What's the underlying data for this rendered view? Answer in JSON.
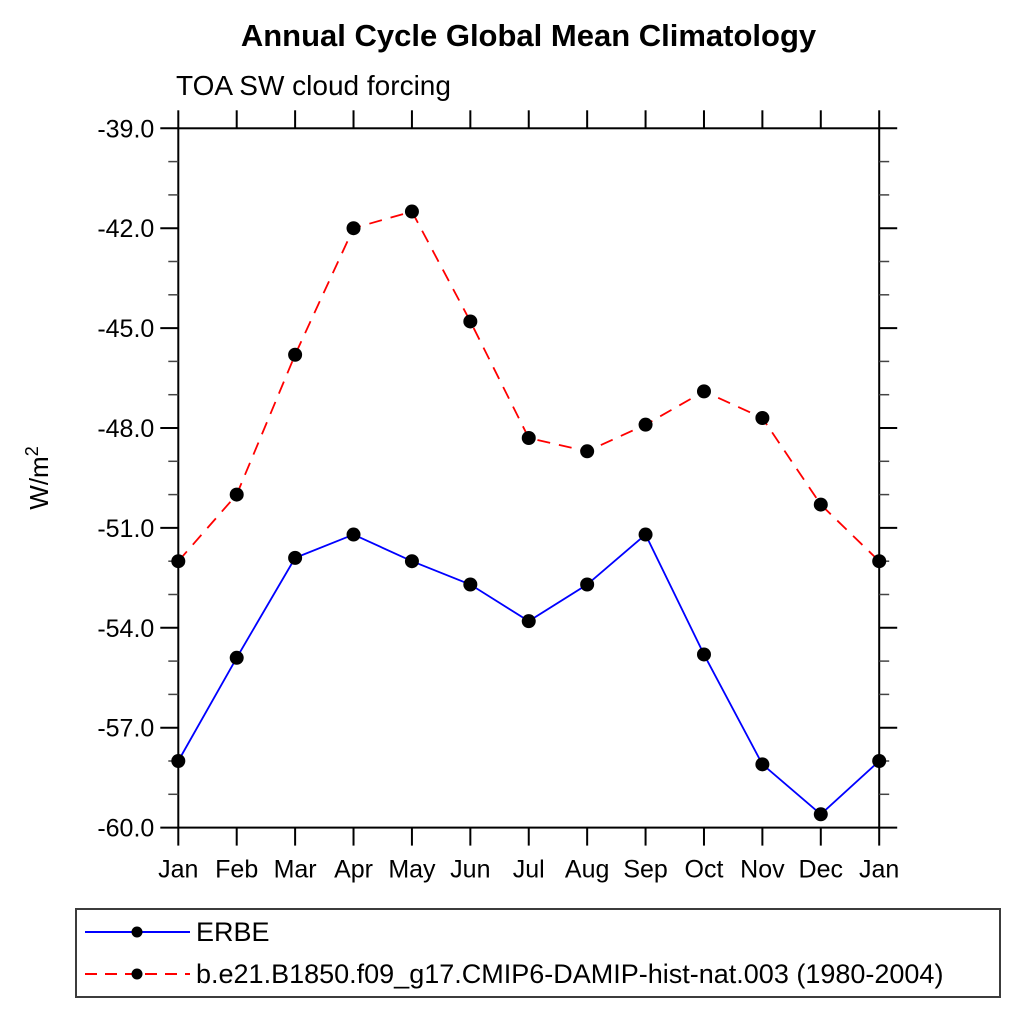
{
  "header": {
    "title": "Annual Cycle Global Mean Climatology",
    "subtitle": "TOA SW cloud forcing"
  },
  "chart_data": {
    "type": "line",
    "title": "Annual Cycle Global Mean Climatology",
    "subtitle": "TOA SW cloud forcing",
    "ylabel": {
      "base": "W/m",
      "exponent": "2"
    },
    "xlabel": "",
    "categories": [
      "Jan",
      "Feb",
      "Mar",
      "Apr",
      "May",
      "Jun",
      "Jul",
      "Aug",
      "Sep",
      "Oct",
      "Nov",
      "Dec",
      "Jan"
    ],
    "series": [
      {
        "name": "ERBE",
        "line_color": "#0000ff",
        "line_style": "solid",
        "marker": "filled-circle",
        "marker_color": "#000000",
        "values": [
          -58.0,
          -54.9,
          -51.9,
          -51.2,
          -52.0,
          -52.7,
          -53.8,
          -52.7,
          -51.2,
          -54.8,
          -58.1,
          -59.6,
          -58.0
        ]
      },
      {
        "name": "b.e21.B1850.f09_g17.CMIP6-DAMIP-hist-nat.003 (1980-2004)",
        "line_color": "#ff0000",
        "line_style": "dashed",
        "marker": "filled-circle",
        "marker_color": "#000000",
        "values": [
          -52.0,
          -50.0,
          -45.8,
          -42.0,
          -41.5,
          -44.8,
          -48.3,
          -48.7,
          -47.9,
          -46.9,
          -47.7,
          -50.3,
          -52.0
        ]
      }
    ],
    "ylim": [
      -60.0,
      -39.0
    ],
    "yticks_major": [
      -39.0,
      -42.0,
      -45.0,
      -48.0,
      -51.0,
      -54.0,
      -57.0,
      -60.0
    ],
    "ytick_labels": [
      "-39.0",
      "-42.0",
      "-45.0",
      "-48.0",
      "-51.0",
      "-54.0",
      "-57.0",
      "-60.0"
    ],
    "ytick_minor_step": 1.0,
    "grid": false,
    "legend_position": "bottom-left-box",
    "axis_color": "#000000",
    "background_color": "#ffffff"
  }
}
